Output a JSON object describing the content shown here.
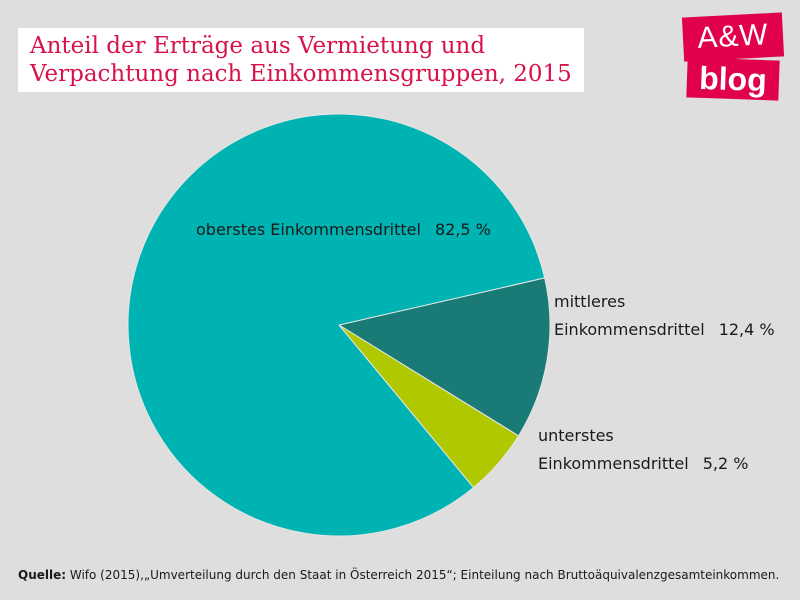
{
  "title": {
    "line1": "Anteil der Erträge aus Vermietung und",
    "line2": "Verpachtung nach Einkommensgruppen, 2015"
  },
  "logo": {
    "top": "A&W",
    "bottom": "blog"
  },
  "chart_data": {
    "type": "pie",
    "title": "Anteil der Erträge aus Vermietung und Verpachtung nach Einkommensgruppen, 2015",
    "slices": [
      {
        "label": "oberstes Einkommensdrittel",
        "value": 82.5,
        "display": "82,5 %",
        "color": "#00b3b3"
      },
      {
        "label": "mittleres Einkommensdrittel",
        "value": 12.4,
        "display": "12,4 %",
        "color": "#1a7a76"
      },
      {
        "label": "unterstes Einkommensdrittel",
        "value": 5.2,
        "display": "5,2 %",
        "color": "#b0c800"
      }
    ]
  },
  "labels": {
    "top": {
      "text": "oberstes Einkommensdrittel",
      "value": "82,5 %"
    },
    "mid": {
      "line1": "mittleres",
      "line2": "Einkommensdrittel",
      "value": "12,4 %"
    },
    "low": {
      "line1": "unterstes",
      "line2": "Einkommensdrittel",
      "value": "5,2 %"
    }
  },
  "footer": {
    "bold": "Quelle:",
    "text": " Wifo (2015),„Umverteilung durch den Staat in Österreich 2015“; Einteilung nach Bruttoäquivalenzgesamteinkommen."
  },
  "colors": {
    "background": "#dedede",
    "title": "#d8124b",
    "logo": "#e0004d"
  }
}
